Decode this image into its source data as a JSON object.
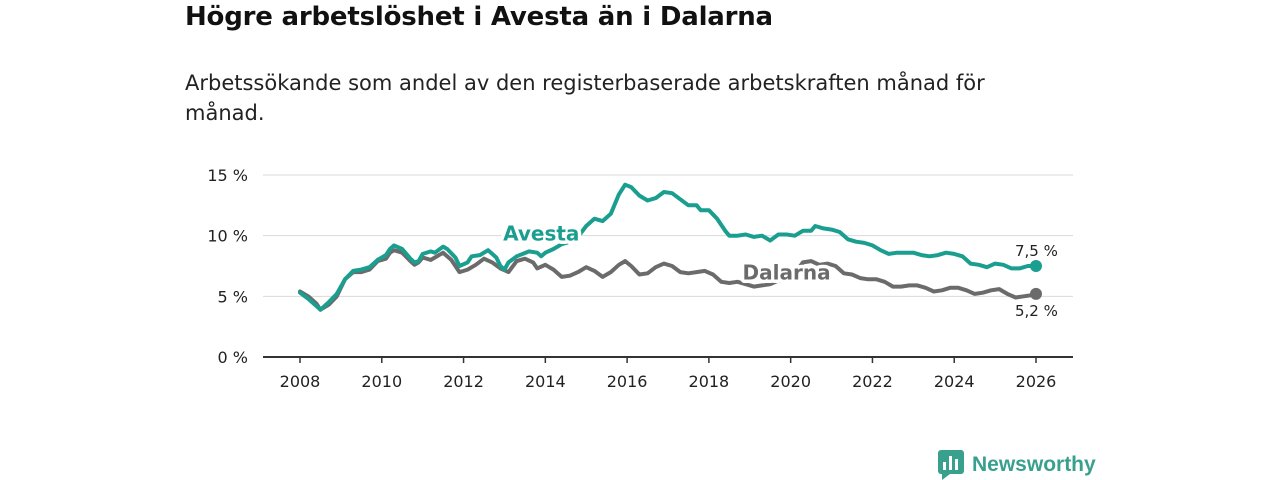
{
  "title": "Högre arbetslöshet i Avesta än i Dalarna",
  "subtitle": "Arbetssökande som andel av den registerbaserade arbetskraften månad för månad.",
  "brand": {
    "name": "Newsworthy",
    "icon": "bar-chart-icon",
    "color": "#3aa08e"
  },
  "colors": {
    "avesta": "#1a9e8f",
    "dalarna": "#6b6b6b",
    "axis": "#333333",
    "grid": "#d9d9d9"
  },
  "chart_data": {
    "type": "line",
    "xlim": [
      2008,
      2026
    ],
    "ylim": [
      0,
      15
    ],
    "x_ticks": [
      2008,
      2010,
      2012,
      2014,
      2016,
      2018,
      2020,
      2022,
      2024,
      2026
    ],
    "x_tick_labels": [
      "2008",
      "2010",
      "2012",
      "2014",
      "2016",
      "2018",
      "2020",
      "2022",
      "2024",
      "2026"
    ],
    "y_ticks": [
      0,
      5,
      10,
      15
    ],
    "y_tick_labels": [
      "0 %",
      "5 %",
      "10 %",
      "15 %"
    ],
    "grid": true,
    "series": [
      {
        "name": "Avesta",
        "color": "#1a9e8f",
        "end_label": "7,5 %",
        "points": [
          [
            2008.0,
            5.3
          ],
          [
            2008.2,
            4.8
          ],
          [
            2008.4,
            4.2
          ],
          [
            2008.5,
            3.9
          ],
          [
            2008.7,
            4.5
          ],
          [
            2008.9,
            5.2
          ],
          [
            2009.1,
            6.4
          ],
          [
            2009.3,
            7.1
          ],
          [
            2009.5,
            7.2
          ],
          [
            2009.7,
            7.4
          ],
          [
            2009.9,
            8.0
          ],
          [
            2010.1,
            8.4
          ],
          [
            2010.2,
            8.9
          ],
          [
            2010.3,
            9.2
          ],
          [
            2010.5,
            8.9
          ],
          [
            2010.7,
            8.1
          ],
          [
            2010.8,
            7.8
          ],
          [
            2010.9,
            7.9
          ],
          [
            2011.0,
            8.5
          ],
          [
            2011.2,
            8.7
          ],
          [
            2011.3,
            8.6
          ],
          [
            2011.5,
            9.1
          ],
          [
            2011.6,
            8.9
          ],
          [
            2011.8,
            8.2
          ],
          [
            2011.9,
            7.5
          ],
          [
            2012.1,
            7.8
          ],
          [
            2012.2,
            8.3
          ],
          [
            2012.4,
            8.4
          ],
          [
            2012.6,
            8.8
          ],
          [
            2012.8,
            8.2
          ],
          [
            2012.9,
            7.5
          ],
          [
            2013.0,
            7.2
          ],
          [
            2013.1,
            7.8
          ],
          [
            2013.3,
            8.3
          ],
          [
            2013.6,
            8.7
          ],
          [
            2013.8,
            8.6
          ],
          [
            2013.9,
            8.3
          ],
          [
            2014.0,
            8.6
          ],
          [
            2014.2,
            8.9
          ],
          [
            2014.4,
            9.3
          ],
          [
            2014.6,
            9.5
          ],
          [
            2014.8,
            9.9
          ],
          [
            2015.0,
            10.8
          ],
          [
            2015.2,
            11.4
          ],
          [
            2015.4,
            11.2
          ],
          [
            2015.6,
            11.8
          ],
          [
            2015.8,
            13.4
          ],
          [
            2015.95,
            14.2
          ],
          [
            2016.1,
            14.0
          ],
          [
            2016.3,
            13.3
          ],
          [
            2016.5,
            12.9
          ],
          [
            2016.7,
            13.1
          ],
          [
            2016.9,
            13.6
          ],
          [
            2017.1,
            13.5
          ],
          [
            2017.3,
            13.0
          ],
          [
            2017.5,
            12.5
          ],
          [
            2017.7,
            12.5
          ],
          [
            2017.8,
            12.1
          ],
          [
            2018.0,
            12.1
          ],
          [
            2018.2,
            11.4
          ],
          [
            2018.4,
            10.4
          ],
          [
            2018.5,
            10.0
          ],
          [
            2018.7,
            10.0
          ],
          [
            2018.9,
            10.1
          ],
          [
            2019.1,
            9.9
          ],
          [
            2019.3,
            10.0
          ],
          [
            2019.5,
            9.6
          ],
          [
            2019.7,
            10.1
          ],
          [
            2019.9,
            10.1
          ],
          [
            2020.1,
            10.0
          ],
          [
            2020.3,
            10.4
          ],
          [
            2020.5,
            10.4
          ],
          [
            2020.6,
            10.8
          ],
          [
            2020.8,
            10.6
          ],
          [
            2021.0,
            10.5
          ],
          [
            2021.2,
            10.3
          ],
          [
            2021.4,
            9.7
          ],
          [
            2021.6,
            9.5
          ],
          [
            2021.8,
            9.4
          ],
          [
            2022.0,
            9.2
          ],
          [
            2022.2,
            8.8
          ],
          [
            2022.4,
            8.5
          ],
          [
            2022.6,
            8.6
          ],
          [
            2022.8,
            8.6
          ],
          [
            2023.0,
            8.6
          ],
          [
            2023.2,
            8.4
          ],
          [
            2023.4,
            8.3
          ],
          [
            2023.6,
            8.4
          ],
          [
            2023.8,
            8.6
          ],
          [
            2024.0,
            8.5
          ],
          [
            2024.2,
            8.3
          ],
          [
            2024.4,
            7.7
          ],
          [
            2024.6,
            7.6
          ],
          [
            2024.8,
            7.4
          ],
          [
            2025.0,
            7.7
          ],
          [
            2025.2,
            7.6
          ],
          [
            2025.4,
            7.3
          ],
          [
            2025.6,
            7.3
          ],
          [
            2025.8,
            7.5
          ],
          [
            2026.0,
            7.5
          ]
        ]
      },
      {
        "name": "Dalarna",
        "color": "#6b6b6b",
        "end_label": "5,2 %",
        "points": [
          [
            2008.0,
            5.4
          ],
          [
            2008.2,
            5.0
          ],
          [
            2008.4,
            4.4
          ],
          [
            2008.5,
            3.9
          ],
          [
            2008.7,
            4.3
          ],
          [
            2008.9,
            5.0
          ],
          [
            2009.1,
            6.4
          ],
          [
            2009.3,
            7.0
          ],
          [
            2009.5,
            7.0
          ],
          [
            2009.7,
            7.2
          ],
          [
            2009.9,
            7.9
          ],
          [
            2010.1,
            8.1
          ],
          [
            2010.2,
            8.6
          ],
          [
            2010.3,
            8.8
          ],
          [
            2010.5,
            8.6
          ],
          [
            2010.7,
            7.9
          ],
          [
            2010.8,
            7.6
          ],
          [
            2010.9,
            7.8
          ],
          [
            2011.0,
            8.2
          ],
          [
            2011.2,
            8.0
          ],
          [
            2011.3,
            8.2
          ],
          [
            2011.5,
            8.6
          ],
          [
            2011.7,
            8.0
          ],
          [
            2011.9,
            7.0
          ],
          [
            2012.1,
            7.2
          ],
          [
            2012.3,
            7.6
          ],
          [
            2012.5,
            8.1
          ],
          [
            2012.7,
            7.8
          ],
          [
            2012.9,
            7.3
          ],
          [
            2013.1,
            7.0
          ],
          [
            2013.3,
            7.9
          ],
          [
            2013.5,
            8.1
          ],
          [
            2013.7,
            7.8
          ],
          [
            2013.8,
            7.3
          ],
          [
            2014.0,
            7.6
          ],
          [
            2014.2,
            7.2
          ],
          [
            2014.4,
            6.6
          ],
          [
            2014.6,
            6.7
          ],
          [
            2014.8,
            7.0
          ],
          [
            2015.0,
            7.4
          ],
          [
            2015.2,
            7.1
          ],
          [
            2015.4,
            6.6
          ],
          [
            2015.6,
            7.0
          ],
          [
            2015.8,
            7.6
          ],
          [
            2015.95,
            7.9
          ],
          [
            2016.1,
            7.5
          ],
          [
            2016.3,
            6.8
          ],
          [
            2016.5,
            6.9
          ],
          [
            2016.7,
            7.4
          ],
          [
            2016.9,
            7.7
          ],
          [
            2017.1,
            7.5
          ],
          [
            2017.3,
            7.0
          ],
          [
            2017.5,
            6.9
          ],
          [
            2017.7,
            7.0
          ],
          [
            2017.9,
            7.1
          ],
          [
            2018.1,
            6.8
          ],
          [
            2018.3,
            6.2
          ],
          [
            2018.5,
            6.1
          ],
          [
            2018.7,
            6.2
          ],
          [
            2018.9,
            6.0
          ],
          [
            2019.1,
            5.8
          ],
          [
            2019.3,
            5.9
          ],
          [
            2019.5,
            6.0
          ],
          [
            2019.7,
            6.3
          ],
          [
            2019.9,
            6.4
          ],
          [
            2020.1,
            6.9
          ],
          [
            2020.3,
            7.8
          ],
          [
            2020.5,
            7.9
          ],
          [
            2020.7,
            7.6
          ],
          [
            2020.9,
            7.7
          ],
          [
            2021.1,
            7.5
          ],
          [
            2021.3,
            6.9
          ],
          [
            2021.5,
            6.8
          ],
          [
            2021.7,
            6.5
          ],
          [
            2021.9,
            6.4
          ],
          [
            2022.1,
            6.4
          ],
          [
            2022.3,
            6.2
          ],
          [
            2022.5,
            5.8
          ],
          [
            2022.7,
            5.8
          ],
          [
            2022.9,
            5.9
          ],
          [
            2023.1,
            5.9
          ],
          [
            2023.3,
            5.7
          ],
          [
            2023.5,
            5.4
          ],
          [
            2023.7,
            5.5
          ],
          [
            2023.9,
            5.7
          ],
          [
            2024.1,
            5.7
          ],
          [
            2024.3,
            5.5
          ],
          [
            2024.5,
            5.2
          ],
          [
            2024.7,
            5.3
          ],
          [
            2024.9,
            5.5
          ],
          [
            2025.1,
            5.6
          ],
          [
            2025.3,
            5.2
          ],
          [
            2025.5,
            4.9
          ],
          [
            2025.7,
            5.0
          ],
          [
            2025.9,
            5.1
          ],
          [
            2026.0,
            5.2
          ]
        ]
      }
    ]
  }
}
